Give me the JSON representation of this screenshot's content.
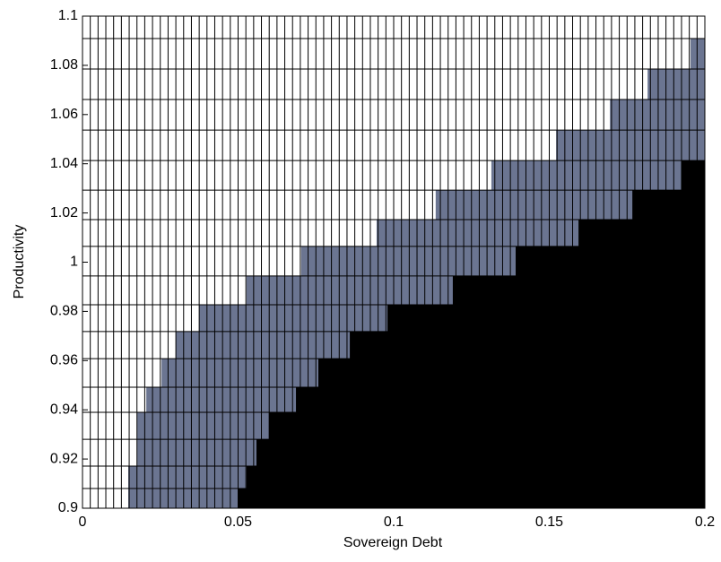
{
  "chart_data": {
    "type": "region",
    "xlabel": "Sovereign Debt",
    "ylabel": "Productivity",
    "xlim": [
      0,
      0.2
    ],
    "ylim": [
      0.9,
      1.1
    ],
    "xticks": [
      0,
      0.05,
      0.1,
      0.15,
      0.2
    ],
    "yticks": [
      0.9,
      0.92,
      0.94,
      0.96,
      0.98,
      1,
      1.02,
      1.04,
      1.06,
      1.08,
      1.1
    ],
    "y_edges": [
      0.9,
      0.908,
      0.9171,
      0.928,
      0.939,
      0.9492,
      0.9608,
      0.9718,
      0.9827,
      0.9944,
      1.0064,
      1.0173,
      1.0293,
      1.0413,
      1.0537,
      1.0661,
      1.0785,
      1.0909,
      1.1
    ],
    "regions": [
      {
        "color": "#6b7591",
        "x_from": [
          0.0147,
          0.0147,
          0.0176,
          0.0176,
          0.0205,
          0.0254,
          0.03,
          0.0375,
          0.0527,
          0.0703,
          0.0945,
          0.1135,
          0.1314,
          0.1522,
          0.1695,
          0.1816,
          0.1954,
          null
        ]
      },
      {
        "color": "#000000",
        "x_from": [
          0.0499,
          0.0527,
          0.0559,
          0.0599,
          0.0686,
          0.0758,
          0.0859,
          0.098,
          0.119,
          0.1392,
          0.1594,
          0.1767,
          0.1925,
          null,
          null,
          null,
          null,
          null
        ]
      }
    ]
  }
}
